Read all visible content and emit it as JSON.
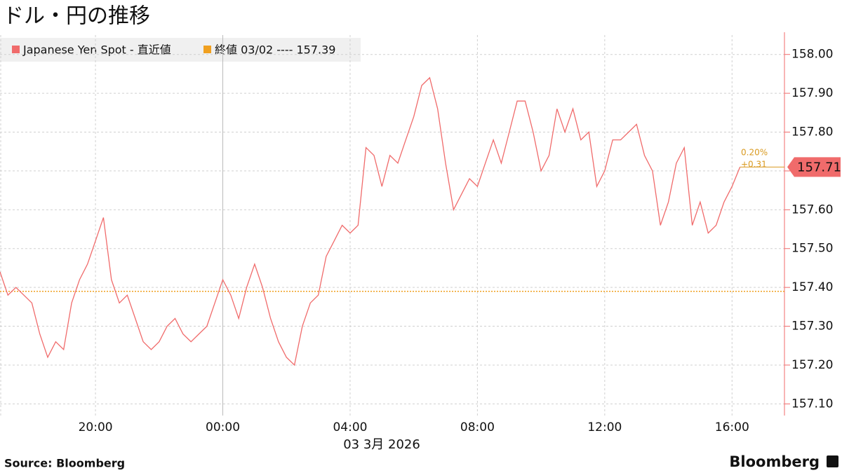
{
  "chart_data": {
    "type": "line",
    "title": "ドル・円の推移",
    "source": "Source:  Bloomberg",
    "logo": "Bloomberg",
    "date_label": "03 3月 2026",
    "legend": [
      "Japanese Yen Spot - 直近値",
      "終値 03/02 ---- 157.39"
    ],
    "categories": [
      null,
      null,
      null,
      null,
      null,
      null,
      null,
      null,
      null,
      null,
      null,
      null,
      "20:00",
      null,
      null,
      null,
      null,
      null,
      null,
      null,
      null,
      null,
      null,
      null,
      null,
      null,
      null,
      null,
      "00:00",
      null,
      null,
      null,
      null,
      null,
      null,
      null,
      null,
      null,
      null,
      null,
      null,
      null,
      null,
      null,
      "04:00",
      null,
      null,
      null,
      null,
      null,
      null,
      null,
      null,
      null,
      null,
      null,
      null,
      null,
      null,
      null,
      "08:00",
      null,
      null,
      null,
      null,
      null,
      null,
      null,
      null,
      null,
      null,
      null,
      null,
      null,
      null,
      null,
      "12:00",
      null,
      null,
      null,
      null,
      null,
      null,
      null,
      null,
      null,
      null,
      null,
      null,
      null,
      null,
      null,
      "16:00",
      null
    ],
    "series": [
      {
        "name": "Japanese Yen Spot",
        "color": "#f06b6b",
        "values": [
          157.44,
          157.38,
          157.4,
          157.38,
          157.36,
          157.28,
          157.22,
          157.26,
          157.24,
          157.36,
          157.42,
          157.46,
          157.52,
          157.58,
          157.42,
          157.36,
          157.38,
          157.32,
          157.26,
          157.24,
          157.26,
          157.3,
          157.32,
          157.28,
          157.26,
          157.28,
          157.3,
          157.36,
          157.42,
          157.38,
          157.32,
          157.4,
          157.46,
          157.4,
          157.32,
          157.26,
          157.22,
          157.2,
          157.3,
          157.36,
          157.38,
          157.48,
          157.52,
          157.56,
          157.54,
          157.56,
          157.76,
          157.74,
          157.66,
          157.74,
          157.72,
          157.78,
          157.84,
          157.92,
          157.94,
          157.86,
          157.72,
          157.6,
          157.64,
          157.68,
          157.66,
          157.72,
          157.78,
          157.72,
          157.8,
          157.88,
          157.88,
          157.8,
          157.7,
          157.74,
          157.86,
          157.8,
          157.86,
          157.78,
          157.8,
          157.66,
          157.7,
          157.78,
          157.78,
          157.8,
          157.82,
          157.74,
          157.7,
          157.56,
          157.62,
          157.72,
          157.76,
          157.56,
          157.62,
          157.54,
          157.56,
          157.62,
          157.66,
          157.71
        ]
      }
    ],
    "reference_line": {
      "value": 157.39,
      "color": "#f0a020"
    },
    "annotations": [
      "0.20%",
      "+0.31"
    ],
    "ylim": [
      157.07,
      158.05
    ],
    "yticks": [
      {
        "value": 157.1,
        "label": "157.10"
      },
      {
        "value": 157.2,
        "label": "157.20"
      },
      {
        "value": 157.3,
        "label": "157.30"
      },
      {
        "value": 157.4,
        "label": "157.40"
      },
      {
        "value": 157.5,
        "label": "157.50"
      },
      {
        "value": 157.6,
        "label": "157.60"
      },
      {
        "value": 157.7,
        "label": "157.70"
      },
      {
        "value": 157.8,
        "label": "157.80"
      },
      {
        "value": 157.9,
        "label": "157.90"
      },
      {
        "value": 158.0,
        "label": "158.00"
      }
    ],
    "grid": true
  }
}
